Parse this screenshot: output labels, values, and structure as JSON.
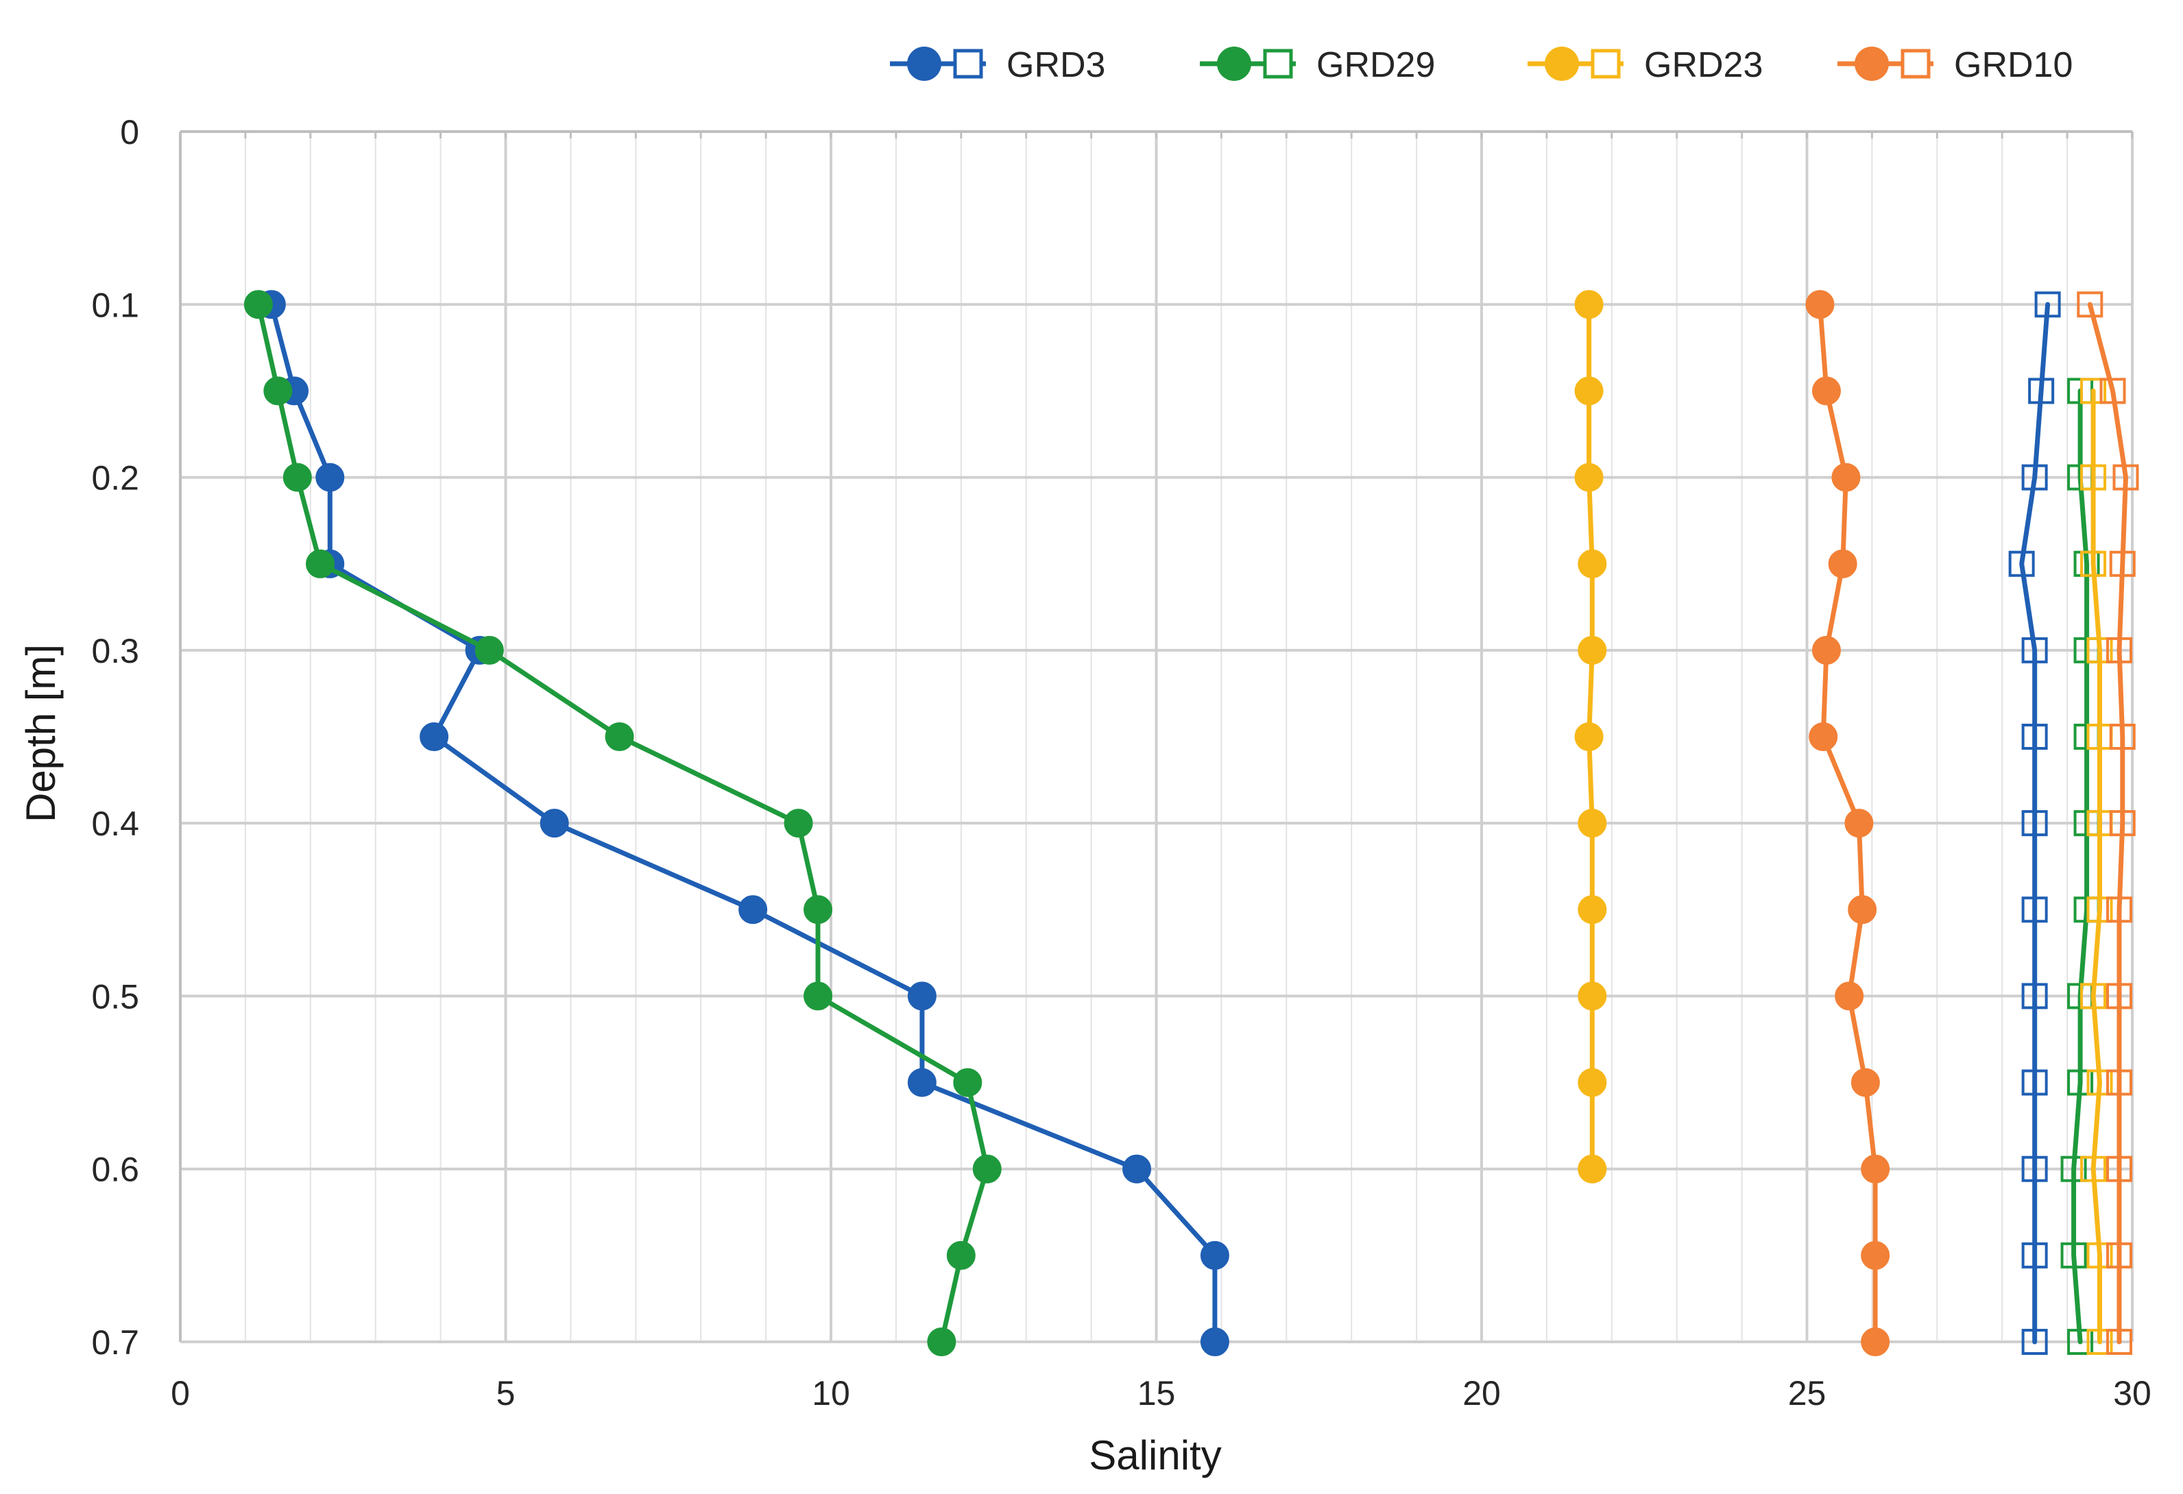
{
  "chart_data": {
    "type": "line",
    "xlabel": "Salinity",
    "ylabel": "Depth [m]",
    "xlim": [
      0,
      30
    ],
    "ylim": [
      0,
      0.7
    ],
    "y_inverted": true,
    "x_major_ticks": [
      0,
      5,
      10,
      15,
      20,
      25,
      30
    ],
    "x_tick_labels": [
      "0",
      "5",
      "10",
      "15",
      "20",
      "25",
      "30"
    ],
    "x_minor_step": 1,
    "y_ticks": [
      0,
      0.1,
      0.2,
      0.3,
      0.4,
      0.5,
      0.6,
      0.7
    ],
    "y_tick_labels": [
      "0",
      "0.1",
      "0.2",
      "0.3",
      "0.4",
      "0.5",
      "0.6",
      "0.7"
    ],
    "grid": true,
    "legend_position": "top",
    "depths": [
      0.1,
      0.15,
      0.2,
      0.25,
      0.3,
      0.35,
      0.4,
      0.45,
      0.5,
      0.55,
      0.6,
      0.65,
      0.7
    ],
    "series": [
      {
        "name": "GRD3",
        "color": "#1f5fb4",
        "marker": "circle-filled",
        "points": [
          [
            1.4,
            0.1
          ],
          [
            1.75,
            0.15
          ],
          [
            2.3,
            0.2
          ],
          [
            2.3,
            0.25
          ],
          [
            4.6,
            0.3
          ],
          [
            3.9,
            0.35
          ],
          [
            5.75,
            0.4
          ],
          [
            8.8,
            0.45
          ],
          [
            11.4,
            0.5
          ],
          [
            11.4,
            0.55
          ],
          [
            14.7,
            0.6
          ],
          [
            15.9,
            0.65
          ],
          [
            15.9,
            0.7
          ]
        ]
      },
      {
        "name": "GRD3",
        "color": "#1f5fb4",
        "marker": "square-open",
        "points": [
          [
            28.7,
            0.1
          ],
          [
            28.6,
            0.15
          ],
          [
            28.5,
            0.2
          ],
          [
            28.3,
            0.25
          ],
          [
            28.5,
            0.3
          ],
          [
            28.5,
            0.35
          ],
          [
            28.5,
            0.4
          ],
          [
            28.5,
            0.45
          ],
          [
            28.5,
            0.5
          ],
          [
            28.5,
            0.55
          ],
          [
            28.5,
            0.6
          ],
          [
            28.5,
            0.65
          ],
          [
            28.5,
            0.7
          ]
        ]
      },
      {
        "name": "GRD29",
        "color": "#1e9a3c",
        "marker": "circle-filled",
        "points": [
          [
            1.2,
            0.1
          ],
          [
            1.5,
            0.15
          ],
          [
            1.8,
            0.2
          ],
          [
            2.15,
            0.25
          ],
          [
            4.75,
            0.3
          ],
          [
            6.75,
            0.35
          ],
          [
            9.5,
            0.4
          ],
          [
            9.8,
            0.45
          ],
          [
            9.8,
            0.5
          ],
          [
            12.1,
            0.55
          ],
          [
            12.4,
            0.6
          ],
          [
            12.0,
            0.65
          ],
          [
            11.7,
            0.7
          ]
        ]
      },
      {
        "name": "GRD29",
        "color": "#1e9a3c",
        "marker": "square-open",
        "points": [
          [
            29.2,
            0.15
          ],
          [
            29.2,
            0.2
          ],
          [
            29.3,
            0.25
          ],
          [
            29.3,
            0.3
          ],
          [
            29.3,
            0.35
          ],
          [
            29.3,
            0.4
          ],
          [
            29.3,
            0.45
          ],
          [
            29.2,
            0.5
          ],
          [
            29.2,
            0.55
          ],
          [
            29.1,
            0.6
          ],
          [
            29.1,
            0.65
          ],
          [
            29.2,
            0.7
          ]
        ]
      },
      {
        "name": "GRD23",
        "color": "#f7b718",
        "marker": "circle-filled",
        "points": [
          [
            21.65,
            0.1
          ],
          [
            21.65,
            0.15
          ],
          [
            21.65,
            0.2
          ],
          [
            21.7,
            0.25
          ],
          [
            21.7,
            0.3
          ],
          [
            21.65,
            0.35
          ],
          [
            21.7,
            0.4
          ],
          [
            21.7,
            0.45
          ],
          [
            21.7,
            0.5
          ],
          [
            21.7,
            0.55
          ],
          [
            21.7,
            0.6
          ]
        ]
      },
      {
        "name": "GRD23",
        "color": "#f7b718",
        "marker": "square-open",
        "points": [
          [
            29.4,
            0.15
          ],
          [
            29.4,
            0.2
          ],
          [
            29.4,
            0.25
          ],
          [
            29.5,
            0.3
          ],
          [
            29.5,
            0.35
          ],
          [
            29.5,
            0.4
          ],
          [
            29.5,
            0.45
          ],
          [
            29.4,
            0.5
          ],
          [
            29.5,
            0.55
          ],
          [
            29.4,
            0.6
          ],
          [
            29.5,
            0.65
          ],
          [
            29.5,
            0.7
          ]
        ]
      },
      {
        "name": "GRD10",
        "color": "#f28036",
        "marker": "circle-filled",
        "points": [
          [
            25.2,
            0.1
          ],
          [
            25.3,
            0.15
          ],
          [
            25.6,
            0.2
          ],
          [
            25.55,
            0.25
          ],
          [
            25.3,
            0.3
          ],
          [
            25.25,
            0.35
          ],
          [
            25.8,
            0.4
          ],
          [
            25.85,
            0.45
          ],
          [
            25.65,
            0.5
          ],
          [
            25.9,
            0.55
          ],
          [
            26.05,
            0.6
          ],
          [
            26.05,
            0.65
          ],
          [
            26.05,
            0.7
          ]
        ]
      },
      {
        "name": "GRD10",
        "color": "#f28036",
        "marker": "square-open",
        "points": [
          [
            29.35,
            0.1
          ],
          [
            29.7,
            0.15
          ],
          [
            29.9,
            0.2
          ],
          [
            29.85,
            0.25
          ],
          [
            29.8,
            0.3
          ],
          [
            29.85,
            0.35
          ],
          [
            29.85,
            0.4
          ],
          [
            29.8,
            0.45
          ],
          [
            29.8,
            0.5
          ],
          [
            29.8,
            0.55
          ],
          [
            29.8,
            0.6
          ],
          [
            29.8,
            0.65
          ],
          [
            29.8,
            0.7
          ]
        ]
      }
    ],
    "legend": [
      {
        "label": "GRD3",
        "color": "#1f5fb4"
      },
      {
        "label": "GRD29",
        "color": "#1e9a3c"
      },
      {
        "label": "GRD23",
        "color": "#f7b718"
      },
      {
        "label": "GRD10",
        "color": "#f28036"
      }
    ]
  }
}
